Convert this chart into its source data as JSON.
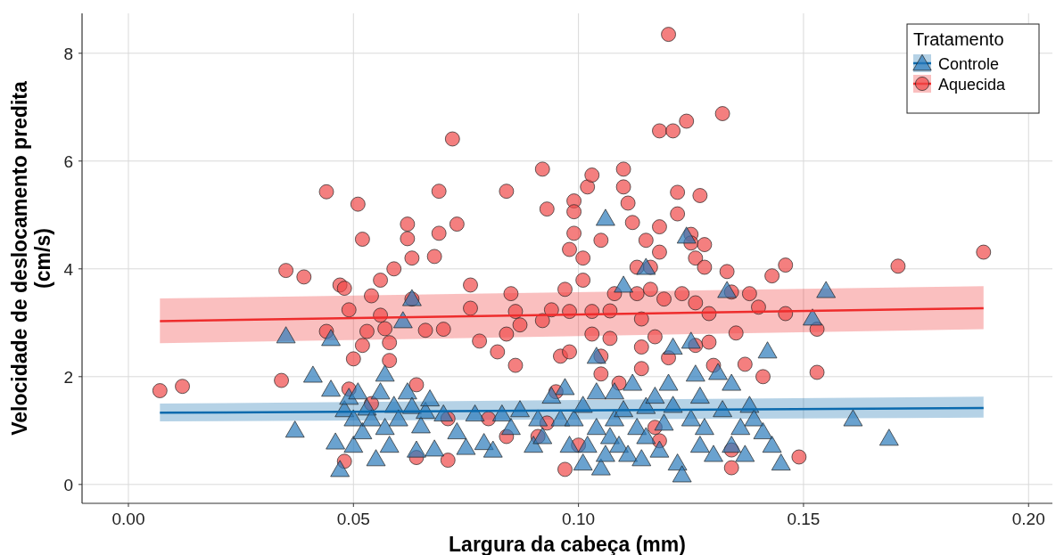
{
  "chart_data": {
    "type": "scatter",
    "xlabel": "Largura da cabeça (mm)",
    "ylabel": "Velocidade de deslocamento predita\n(cm/s)",
    "legend_title": "Tratamento",
    "legend": "top right",
    "grid": true,
    "xlim": [
      -0.0103,
      0.2053
    ],
    "ylim": [
      -0.35,
      8.74
    ],
    "xticks": [
      {
        "value": 0,
        "label": "0.00"
      },
      {
        "value": 0.05,
        "label": "0.05"
      },
      {
        "value": 0.1,
        "label": "0.10"
      },
      {
        "value": 0.15,
        "label": "0.15"
      },
      {
        "value": 0.2,
        "label": "0.20"
      }
    ],
    "yticks": [
      0,
      2,
      4,
      6,
      8
    ],
    "series": [
      {
        "name": "Controle",
        "marker": "triangle",
        "color": "#2b7bba",
        "x": [
          0.035,
          0.037,
          0.041,
          0.045,
          0.045,
          0.046,
          0.047,
          0.048,
          0.049,
          0.05,
          0.05,
          0.051,
          0.052,
          0.053,
          0.054,
          0.055,
          0.056,
          0.057,
          0.057,
          0.058,
          0.059,
          0.06,
          0.061,
          0.062,
          0.063,
          0.063,
          0.064,
          0.065,
          0.066,
          0.067,
          0.068,
          0.07,
          0.073,
          0.075,
          0.077,
          0.079,
          0.081,
          0.083,
          0.085,
          0.087,
          0.09,
          0.091,
          0.092,
          0.094,
          0.096,
          0.097,
          0.098,
          0.099,
          0.101,
          0.101,
          0.102,
          0.104,
          0.104,
          0.104,
          0.105,
          0.106,
          0.106,
          0.107,
          0.108,
          0.108,
          0.109,
          0.11,
          0.11,
          0.111,
          0.112,
          0.113,
          0.114,
          0.115,
          0.115,
          0.115,
          0.117,
          0.118,
          0.119,
          0.12,
          0.121,
          0.121,
          0.122,
          0.123,
          0.124,
          0.125,
          0.125,
          0.126,
          0.127,
          0.127,
          0.128,
          0.13,
          0.131,
          0.132,
          0.133,
          0.134,
          0.134,
          0.136,
          0.137,
          0.138,
          0.139,
          0.141,
          0.142,
          0.143,
          0.145,
          0.152,
          0.155,
          0.161,
          0.169
        ],
        "values": [
          2.76,
          1.01,
          2.03,
          2.71,
          1.77,
          0.79,
          0.28,
          1.39,
          1.62,
          1.22,
          0.73,
          1.72,
          0.98,
          1.42,
          1.22,
          0.48,
          1.72,
          1.06,
          2.05,
          0.73,
          1.47,
          1.22,
          3.04,
          1.72,
          3.45,
          1.45,
          0.64,
          1.09,
          1.36,
          1.59,
          0.66,
          1.31,
          0.98,
          0.69,
          1.31,
          0.78,
          0.64,
          1.31,
          1.06,
          1.39,
          0.73,
          1.22,
          0.89,
          1.64,
          1.22,
          1.8,
          0.73,
          1.22,
          1.47,
          0.4,
          0.73,
          1.72,
          1.06,
          2.38,
          0.31,
          0.56,
          4.94,
          0.89,
          1.72,
          1.22,
          0.73,
          3.7,
          1.39,
          0.56,
          1.88,
          1.06,
          0.48,
          1.45,
          4.03,
          0.89,
          1.64,
          0.64,
          1.14,
          1.88,
          2.55,
          1.47,
          0.4,
          0.18,
          4.61,
          1.22,
          2.66,
          2.05,
          0.73,
          1.64,
          1.06,
          0.56,
          2.08,
          1.39,
          3.6,
          1.88,
          0.73,
          1.06,
          0.56,
          1.47,
          1.22,
          0.98,
          2.48,
          0.73,
          0.4,
          3.09,
          3.6,
          1.22,
          0.86
        ]
      },
      {
        "name": "Aquecida",
        "marker": "circle",
        "color": "#f04848",
        "x": [
          0.007,
          0.012,
          0.035,
          0.034,
          0.039,
          0.044,
          0.044,
          0.047,
          0.048,
          0.051,
          0.052,
          0.049,
          0.05,
          0.049,
          0.048,
          0.053,
          0.052,
          0.054,
          0.056,
          0.056,
          0.059,
          0.057,
          0.058,
          0.058,
          0.054,
          0.062,
          0.062,
          0.063,
          0.063,
          0.064,
          0.064,
          0.066,
          0.068,
          0.069,
          0.069,
          0.07,
          0.071,
          0.072,
          0.073,
          0.071,
          0.076,
          0.076,
          0.078,
          0.082,
          0.084,
          0.084,
          0.084,
          0.085,
          0.086,
          0.086,
          0.087,
          0.091,
          0.092,
          0.093,
          0.092,
          0.094,
          0.095,
          0.096,
          0.097,
          0.098,
          0.098,
          0.098,
          0.099,
          0.099,
          0.099,
          0.101,
          0.101,
          0.102,
          0.103,
          0.105,
          0.103,
          0.103,
          0.105,
          0.105,
          0.107,
          0.107,
          0.108,
          0.11,
          0.11,
          0.111,
          0.112,
          0.113,
          0.113,
          0.114,
          0.114,
          0.114,
          0.115,
          0.116,
          0.116,
          0.117,
          0.118,
          0.118,
          0.118,
          0.119,
          0.12,
          0.12,
          0.121,
          0.122,
          0.122,
          0.123,
          0.124,
          0.125,
          0.125,
          0.126,
          0.126,
          0.126,
          0.127,
          0.128,
          0.128,
          0.129,
          0.129,
          0.13,
          0.132,
          0.133,
          0.134,
          0.135,
          0.137,
          0.138,
          0.14,
          0.141,
          0.143,
          0.146,
          0.146,
          0.149,
          0.153,
          0.153,
          0.171,
          0.19,
          0.097,
          0.118,
          0.134,
          0.1,
          0.109,
          0.117,
          0.093,
          0.08,
          0.134
        ],
        "values": [
          1.74,
          1.82,
          3.97,
          1.93,
          3.85,
          5.43,
          2.84,
          3.7,
          3.64,
          5.2,
          4.55,
          3.24,
          2.33,
          1.77,
          0.43,
          2.84,
          2.58,
          3.5,
          3.14,
          3.79,
          4.0,
          2.89,
          2.63,
          2.3,
          1.5,
          4.83,
          4.56,
          4.2,
          3.44,
          1.85,
          0.5,
          2.86,
          4.23,
          5.44,
          4.66,
          2.88,
          0.45,
          6.41,
          4.83,
          1.22,
          3.7,
          3.27,
          2.66,
          2.46,
          2.79,
          5.44,
          0.89,
          3.54,
          3.21,
          2.21,
          2.96,
          0.89,
          5.85,
          5.11,
          3.04,
          3.24,
          1.72,
          2.38,
          3.62,
          3.21,
          2.46,
          4.36,
          4.66,
          5.26,
          5.06,
          4.2,
          3.79,
          5.52,
          5.74,
          4.53,
          3.21,
          2.79,
          2.38,
          2.05,
          2.71,
          3.22,
          3.54,
          5.85,
          5.52,
          5.22,
          4.86,
          4.03,
          3.54,
          3.07,
          2.55,
          2.15,
          4.53,
          4.03,
          3.62,
          2.74,
          6.56,
          4.31,
          4.78,
          3.44,
          2.35,
          8.35,
          6.56,
          5.42,
          5.02,
          3.54,
          6.74,
          4.64,
          4.48,
          4.2,
          3.37,
          2.58,
          5.36,
          4.45,
          4.03,
          3.17,
          2.64,
          2.21,
          6.88,
          3.95,
          3.57,
          2.81,
          2.23,
          3.54,
          3.29,
          2.0,
          3.87,
          4.07,
          3.17,
          0.51,
          2.88,
          2.08,
          4.05,
          4.31,
          0.28,
          0.81,
          0.31,
          0.73,
          1.88,
          1.06,
          1.14,
          1.22,
          0.64
        ]
      },
      {
        "type": "line",
        "color": "#0b6aad",
        "x": [
          0.007,
          0.19
        ],
        "values": [
          1.33,
          1.42
        ],
        "lower": [
          1.17,
          1.24
        ],
        "upper": [
          1.5,
          1.63
        ]
      },
      {
        "type": "line",
        "color": "#ee2c2c",
        "x": [
          0.007,
          0.19
        ],
        "values": [
          3.03,
          3.27
        ],
        "lower": [
          2.62,
          2.88
        ],
        "upper": [
          3.45,
          3.68
        ]
      }
    ]
  }
}
